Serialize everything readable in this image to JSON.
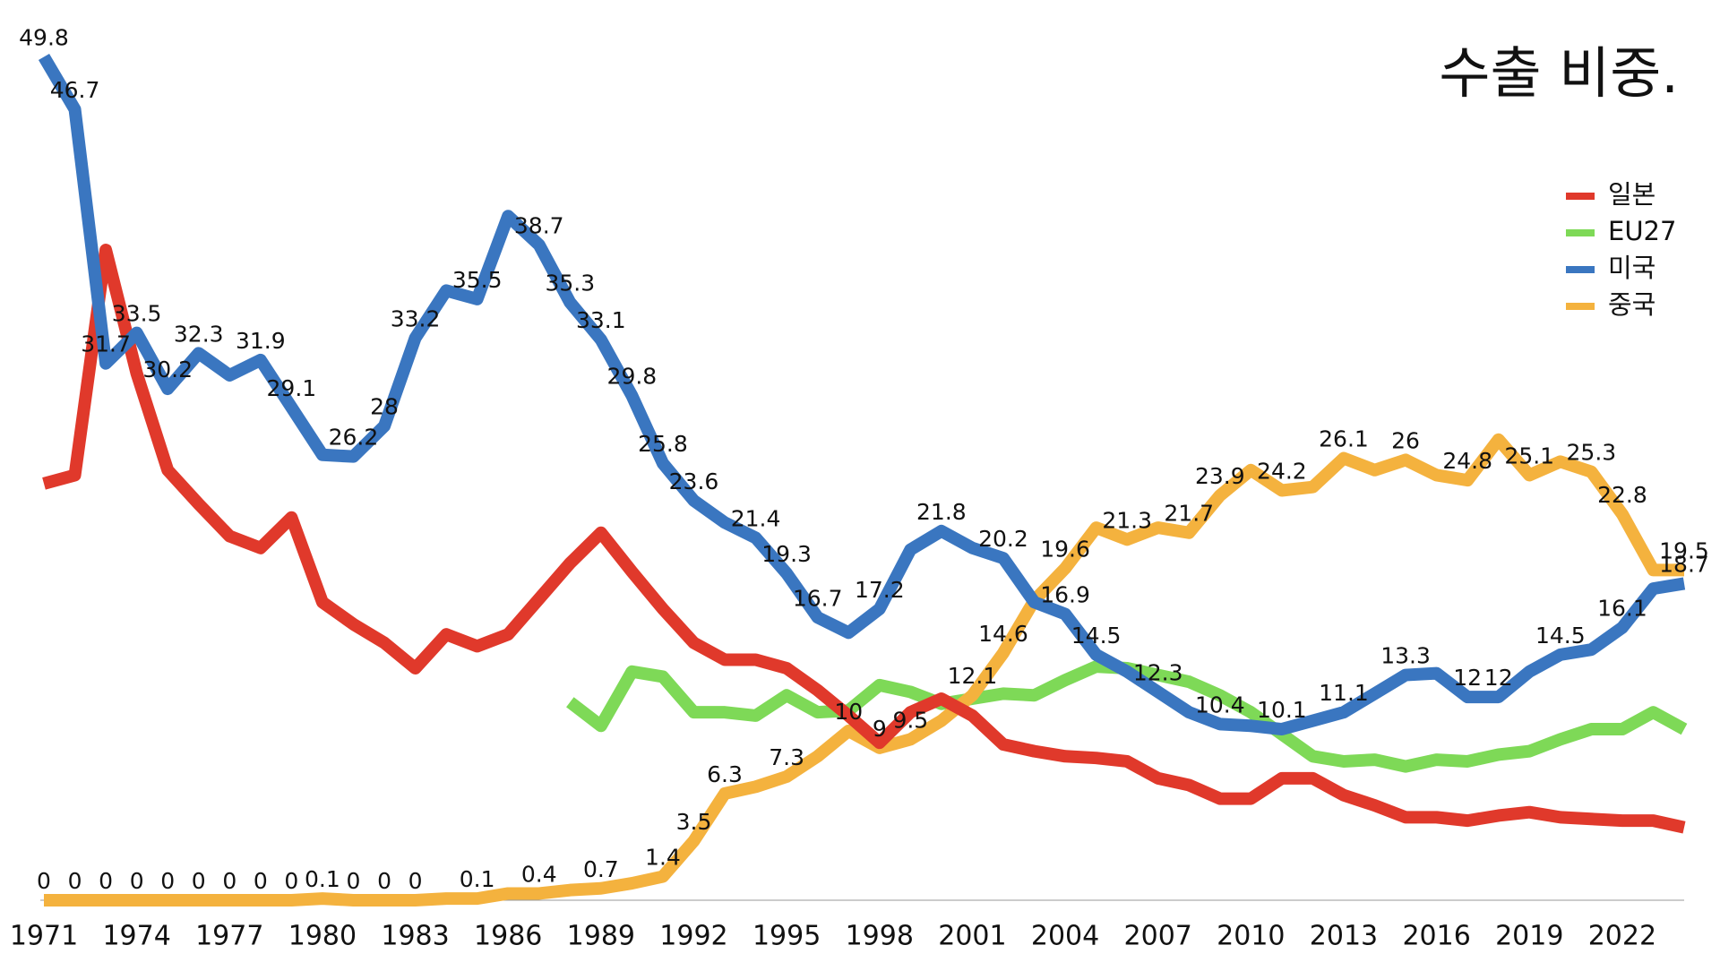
{
  "chart_data": {
    "type": "line",
    "title": "수출 비중.",
    "x": [
      1971,
      1972,
      1973,
      1974,
      1975,
      1976,
      1977,
      1978,
      1979,
      1980,
      1981,
      1982,
      1983,
      1984,
      1985,
      1986,
      1987,
      1988,
      1989,
      1990,
      1991,
      1992,
      1993,
      1994,
      1995,
      1996,
      1997,
      1998,
      1999,
      2000,
      2001,
      2002,
      2003,
      2004,
      2005,
      2006,
      2007,
      2008,
      2009,
      2010,
      2011,
      2012,
      2013,
      2014,
      2015,
      2016,
      2017,
      2018,
      2019,
      2020,
      2021,
      2022,
      2023,
      2024
    ],
    "xlim": [
      1971,
      2024
    ],
    "xticks": [
      1971,
      1974,
      1977,
      1980,
      1983,
      1986,
      1989,
      1992,
      1995,
      1998,
      2001,
      2004,
      2007,
      2010,
      2013,
      2016,
      2019,
      2022
    ],
    "ylim": [
      0,
      53
    ],
    "legend": "right",
    "series": [
      {
        "name": "일본",
        "color": "#e0392b",
        "values": [
          24.6,
          25.1,
          38.4,
          31.1,
          25.4,
          23.4,
          21.5,
          20.8,
          22.6,
          17.6,
          16.3,
          15.2,
          13.7,
          15.7,
          15,
          15.7,
          17.8,
          19.9,
          21.7,
          19.4,
          17.2,
          15.2,
          14.2,
          14.2,
          13.7,
          12.4,
          10.9,
          9.3,
          11.1,
          11.9,
          10.9,
          9.2,
          8.8,
          8.5,
          8.4,
          8.2,
          7.2,
          6.8,
          6,
          6,
          7.2,
          7.2,
          6.2,
          5.6,
          4.9,
          4.9,
          4.7,
          5,
          5.2,
          4.9,
          4.8,
          4.7,
          4.7,
          4.3
        ]
      },
      {
        "name": "EU27",
        "color": "#7ed957",
        "values": [
          null,
          null,
          null,
          null,
          null,
          null,
          null,
          null,
          null,
          null,
          null,
          null,
          null,
          null,
          null,
          null,
          null,
          11.7,
          10.3,
          13.5,
          13.2,
          11.1,
          11.1,
          10.9,
          12.1,
          11.1,
          11.2,
          12.7,
          12.3,
          11.6,
          11.9,
          12.2,
          12.1,
          13,
          13.8,
          13.7,
          13.3,
          12.9,
          12.1,
          11.1,
          9.8,
          8.5,
          8.2,
          8.3,
          7.9,
          8.3,
          8.2,
          8.6,
          8.8,
          9.5,
          10.1,
          10.1,
          11.1,
          10.1
        ]
      },
      {
        "name": "미국",
        "color": "#3a76c0",
        "values": [
          49.8,
          46.7,
          31.7,
          33.5,
          30.2,
          32.3,
          31,
          31.9,
          29.1,
          26.3,
          26.2,
          28,
          33.2,
          36,
          35.5,
          40.4,
          38.7,
          35.3,
          33.1,
          29.8,
          25.8,
          23.6,
          22.3,
          21.4,
          19.3,
          16.7,
          15.8,
          17.2,
          20.7,
          21.8,
          20.8,
          20.2,
          17.6,
          16.9,
          14.5,
          13.5,
          12.3,
          11.1,
          10.4,
          10.3,
          10.1,
          10.6,
          11.1,
          12.2,
          13.3,
          13.4,
          12,
          12,
          13.5,
          14.5,
          14.8,
          16.1,
          18.4,
          18.7
        ],
        "value_labels": [
          "49.8",
          "46.7",
          "31.7",
          "33.5",
          "30.2",
          "32.3",
          null,
          "31.9",
          "29.1",
          null,
          "26.2",
          "28",
          "33.2",
          null,
          "35.5",
          null,
          "38.7",
          "35.3",
          "33.1",
          "29.8",
          "25.8",
          "23.6",
          null,
          "21.4",
          "19.3",
          "16.7",
          null,
          "17.2",
          null,
          "21.8",
          null,
          "20.2",
          null,
          "16.9",
          "14.5",
          null,
          "12.3",
          null,
          "10.4",
          null,
          "10.1",
          null,
          "11.1",
          null,
          "13.3",
          null,
          "12",
          "12",
          null,
          "14.5",
          null,
          "16.1",
          null,
          "18.7"
        ]
      },
      {
        "name": "중국",
        "color": "#f4b23e",
        "values": [
          0,
          0,
          0,
          0,
          0,
          0,
          0,
          0,
          0,
          0.1,
          0,
          0,
          0,
          0.1,
          0.1,
          0.4,
          0.4,
          0.6,
          0.7,
          1.0,
          1.4,
          3.5,
          6.3,
          6.7,
          7.3,
          8.5,
          10,
          9,
          9.5,
          10.6,
          12.1,
          14.6,
          17.7,
          19.6,
          22,
          21.3,
          22,
          21.7,
          23.9,
          25.4,
          24.2,
          24.4,
          26.1,
          25.4,
          26,
          25.1,
          24.8,
          27.2,
          25.1,
          25.9,
          25.3,
          22.8,
          19.5,
          19.5
        ],
        "value_labels": [
          "0",
          "0",
          "0",
          "0",
          "0",
          "0",
          "0",
          "0",
          "0",
          "0.1",
          "0",
          "0",
          "0",
          null,
          "0.1",
          null,
          "0.4",
          null,
          "0.7",
          null,
          "1.4",
          "3.5",
          "6.3",
          null,
          "7.3",
          null,
          "10",
          "9",
          "9.5",
          null,
          "12.1",
          "14.6",
          null,
          "19.6",
          null,
          "21.3",
          null,
          "21.7",
          "23.9",
          null,
          "24.2",
          null,
          "26.1",
          null,
          "26",
          null,
          "24.8",
          null,
          "25.1",
          null,
          "25.3",
          "22.8",
          null,
          "19.5"
        ]
      }
    ]
  }
}
